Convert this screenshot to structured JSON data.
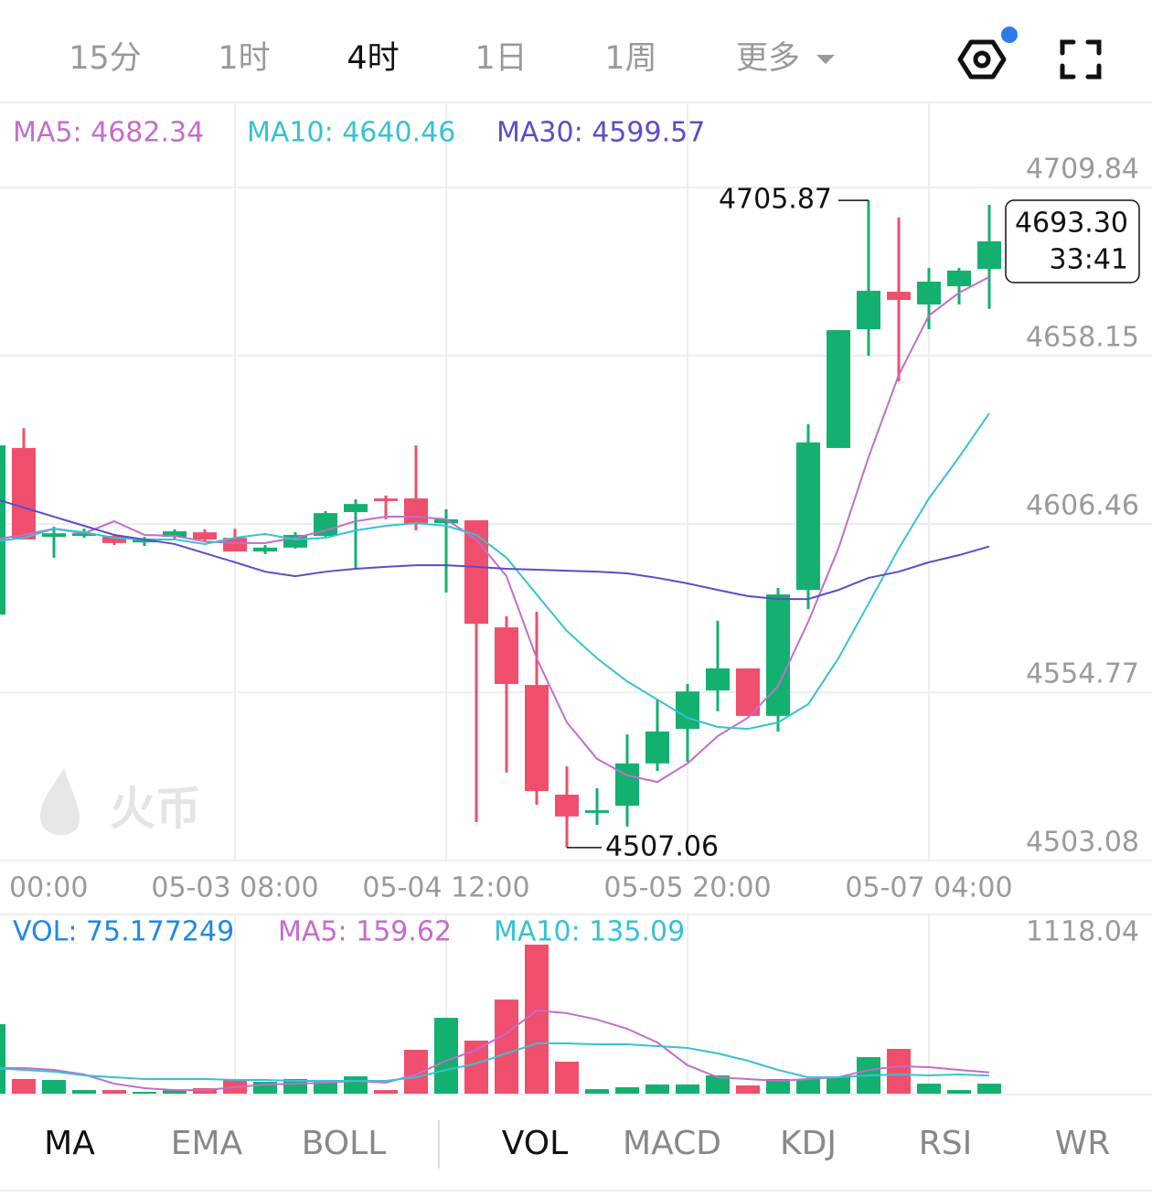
{
  "tabs": [
    "15分",
    "1时",
    "4时",
    "1日",
    "1周",
    "更多"
  ],
  "watermark": "火币",
  "chart_data": [
    {
      "type": "candlestick",
      "x": [
        "00:00",
        null,
        null,
        null,
        null,
        null,
        null,
        null,
        "05-03 08:00",
        null,
        null,
        null,
        null,
        null,
        null,
        "05-04 12:00",
        null,
        null,
        null,
        null,
        null,
        null,
        null,
        "05-05 20:00",
        null,
        null,
        null,
        null,
        null,
        null,
        null,
        "05-07 04:00",
        null,
        null
      ],
      "open": [
        4578.6,
        4629.8,
        4602.5,
        4602.8,
        4602.8,
        4600.8,
        4602.5,
        4603.9,
        4602.2,
        4598.0,
        4599.2,
        4602.8,
        4610.1,
        4614.3,
        4614.3,
        4606.7,
        4607.6,
        4574.7,
        4557.0,
        4523.3,
        4517.7,
        4519.9,
        4532.9,
        4543.5,
        4555.3,
        4562.1,
        4547.5,
        4586.2,
        4629.8,
        4666.3,
        4677.8,
        4673.9,
        4679.5,
        4684.8
      ],
      "high": [
        4630.6,
        4635.9,
        4605.6,
        4605.0,
        4603.4,
        4602.5,
        4604.8,
        4604.8,
        4605.0,
        4600.0,
        4603.9,
        4610.4,
        4614.0,
        4615.2,
        4630.6,
        4611.0,
        4607.6,
        4578.1,
        4579.5,
        4532.0,
        4525.3,
        4541.8,
        4552.5,
        4557.3,
        4576.7,
        4562.1,
        4586.8,
        4637.1,
        4666.0,
        4705.87,
        4700.6,
        4685.1,
        4685.1,
        4704.5
      ],
      "low": [
        4578.6,
        4601.7,
        4596.1,
        4602.2,
        4600.0,
        4599.7,
        4602.0,
        4601.1,
        4598.0,
        4597.2,
        4598.9,
        4602.5,
        4592.7,
        4607.9,
        4604.5,
        4585.4,
        4514.9,
        4530.1,
        4520.2,
        4507.06,
        4514.0,
        4513.5,
        4530.6,
        4533.4,
        4548.9,
        4547.5,
        4542.7,
        4580.3,
        4629.8,
        4658.1,
        4650.3,
        4666.3,
        4673.9,
        4672.5
      ],
      "close": [
        4630.6,
        4601.7,
        4603.6,
        4603.6,
        4600.6,
        4602.0,
        4604.2,
        4601.7,
        4598.0,
        4599.2,
        4603.1,
        4609.8,
        4612.6,
        4613.5,
        4606.5,
        4607.9,
        4575.8,
        4557.3,
        4524.4,
        4516.6,
        4518.5,
        4532.9,
        4542.7,
        4555.0,
        4562.1,
        4547.5,
        4584.8,
        4631.5,
        4666.0,
        4678.1,
        4675.3,
        4680.9,
        4684.3,
        4693.3
      ],
      "up_color": "#13b070",
      "down_color": "#ef4f6d",
      "series": [
        {
          "name": "MA5: 4682.34",
          "color": "#c46ccc",
          "values": [
            4601.7,
            4603.1,
            4605.0,
            4603.6,
            4607.3,
            4603.1,
            4602.8,
            4601.1,
            4600.6,
            4600.6,
            4602.2,
            4604.5,
            4607.3,
            4608.7,
            4608.7,
            4607.9,
            4601.7,
            4590.4,
            4565.2,
            4545.5,
            4534.3,
            4529.2,
            4527.2,
            4532.9,
            4541.3,
            4546.9,
            4556.7,
            4576.4,
            4598.9,
            4627.0,
            4652.2,
            4670.5,
            4677.5,
            4682.34
          ]
        },
        {
          "name": "MA10: 4640.46",
          "color": "#36c2d2",
          "values": [
            4601.1,
            4602.2,
            4605.0,
            4603.9,
            4602.2,
            4601.7,
            4601.7,
            4600.3,
            4602.2,
            4603.4,
            4601.7,
            4602.2,
            4604.5,
            4605.9,
            4606.7,
            4605.9,
            4603.1,
            4596.1,
            4584.8,
            4573.6,
            4565.2,
            4558.1,
            4552.5,
            4546.9,
            4544.1,
            4543.5,
            4545.5,
            4551.1,
            4565.2,
            4582.0,
            4598.9,
            4614.3,
            4627.0,
            4640.46
          ]
        },
        {
          "name": "MA30: 4599.57",
          "color": "#5a4ccc",
          "values": [
            4614.3,
            4611.5,
            4608.7,
            4605.9,
            4603.1,
            4601.7,
            4600.3,
            4597.5,
            4594.7,
            4591.8,
            4590.4,
            4591.8,
            4592.7,
            4593.3,
            4593.8,
            4593.8,
            4593.3,
            4592.7,
            4592.4,
            4592.1,
            4591.8,
            4591.3,
            4589.9,
            4588.2,
            4586.2,
            4584.3,
            4583.4,
            4583.4,
            4586.2,
            4589.9,
            4591.8,
            4594.7,
            4596.9,
            4599.57
          ]
        }
      ],
      "ylim": [
        4503.08,
        4709.84
      ],
      "yticks": [
        4709.84,
        4658.15,
        4606.46,
        4554.77,
        4503.08
      ],
      "grid": true,
      "max_label": "4705.87",
      "min_label": "4507.06",
      "last_price_label": "4693.30",
      "countdown": "33:41"
    },
    {
      "type": "bar",
      "name": "VOL: 75.177249",
      "color": "#1e88e5",
      "values": [
        521,
        110,
        103,
        27,
        27,
        14,
        27,
        41,
        110,
        89,
        110,
        89,
        130,
        27,
        329,
        569,
        398,
        706,
        1118.04,
        240,
        34,
        48,
        69,
        69,
        137,
        62,
        110,
        110,
        123,
        274,
        336,
        75,
        27,
        75.177249
      ],
      "series": [
        {
          "name": "MA5: 159.62",
          "color": "#c46ccc",
          "values": [
            192,
            192,
            178,
            144,
            75,
            41,
            27,
            27,
            48,
            69,
            75,
            82,
            96,
            82,
            144,
            247,
            329,
            453,
            624,
            604,
            556,
            487,
            384,
            213,
            123,
            110,
            96,
            110,
            123,
            178,
            206,
            199,
            178,
            159.62
          ]
        },
        {
          "name": "MA10: 135.09",
          "color": "#36c2d2",
          "values": [
            192,
            178,
            165,
            137,
            123,
            110,
            110,
            110,
            103,
            103,
            96,
            96,
            96,
            96,
            123,
            178,
            226,
            302,
            377,
            377,
            370,
            370,
            357,
            343,
            302,
            247,
            178,
            123,
            123,
            137,
            144,
            137,
            144,
            135.09
          ]
        }
      ],
      "ylim": [
        0,
        1118.04
      ],
      "yticks": [
        1118.04
      ]
    }
  ],
  "indicator_tabs": [
    "MA",
    "EMA",
    "BOLL",
    "VOL",
    "MACD",
    "KDJ",
    "RSI",
    "WR"
  ]
}
